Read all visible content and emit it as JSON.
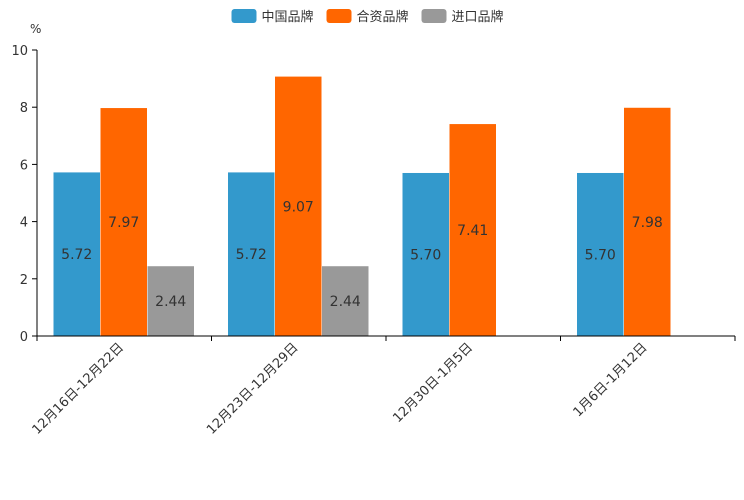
{
  "chart_data": {
    "type": "bar",
    "title": "",
    "ylabel": "%",
    "xlabel": "",
    "ylim": [
      0,
      10
    ],
    "yticks": [
      0,
      2,
      4,
      6,
      8,
      10
    ],
    "categories": [
      "12月16日-12月22日",
      "12月23日-12月29日",
      "12月30日-1月5日",
      "1月6日-1月12日"
    ],
    "series": [
      {
        "name": "中国品牌",
        "color": "#3399CC",
        "values": [
          5.72,
          5.72,
          5.7,
          5.7
        ],
        "labels": [
          "5.72",
          "5.72",
          "5.70",
          "5.70"
        ]
      },
      {
        "name": "合资品牌",
        "color": "#FF6600",
        "values": [
          7.97,
          9.07,
          7.41,
          7.98
        ],
        "labels": [
          "7.97",
          "9.07",
          "7.41",
          "7.98"
        ]
      },
      {
        "name": "进口品牌",
        "color": "#999999",
        "values": [
          2.44,
          2.44,
          null,
          null
        ],
        "labels": [
          "2.44",
          "2.44",
          null,
          null
        ]
      }
    ],
    "legend": "top-center",
    "grid": false
  }
}
